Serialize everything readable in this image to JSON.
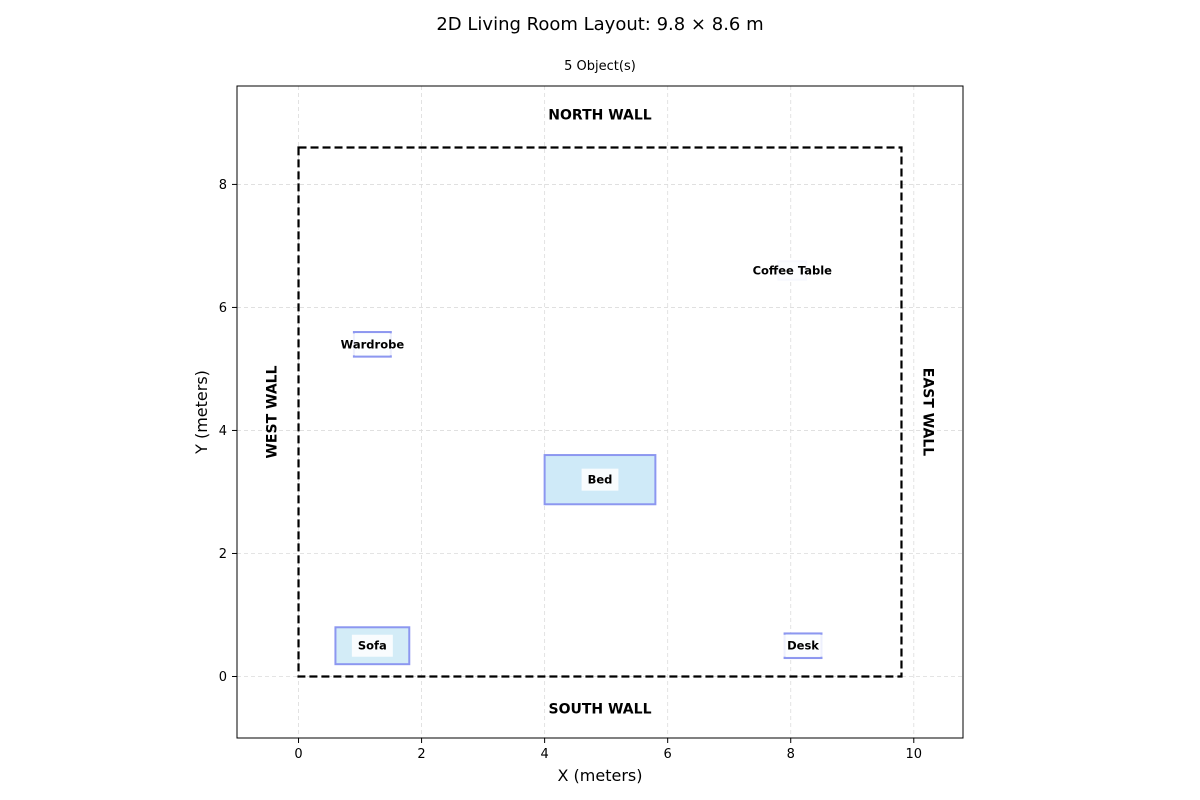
{
  "title": "2D Living Room Layout: 9.8 × 8.6 m",
  "subtitle": "5 Object(s)",
  "chart_data": {
    "type": "floor-plan",
    "xlabel": "X (meters)",
    "ylabel": "Y (meters)",
    "xlim": [
      -1.0,
      10.8
    ],
    "ylim": [
      -1.0,
      9.6
    ],
    "xticks": [
      0,
      2,
      4,
      6,
      8,
      10
    ],
    "yticks": [
      0,
      2,
      4,
      6,
      8
    ],
    "grid": true,
    "room": {
      "x": 0,
      "y": 0,
      "width": 9.8,
      "height": 8.6
    },
    "walls": {
      "north": "NORTH WALL",
      "south": "SOUTH WALL",
      "west": "WEST WALL",
      "east": "EAST WALL"
    },
    "objects": [
      {
        "name": "Sofa",
        "x": 0.6,
        "y": 0.2,
        "width": 1.2,
        "height": 0.6,
        "fill": "#d3ecf7",
        "edge": "#8c97f0"
      },
      {
        "name": "Desk",
        "x": 7.9,
        "y": 0.3,
        "width": 0.6,
        "height": 0.4,
        "fill": "#e8f4fb",
        "edge": "#8c97f0"
      },
      {
        "name": "Bed",
        "x": 4.0,
        "y": 2.8,
        "width": 1.8,
        "height": 0.8,
        "fill": "#cfeaf8",
        "edge": "#8c97f0"
      },
      {
        "name": "Wardrobe",
        "x": 0.9,
        "y": 5.2,
        "width": 0.6,
        "height": 0.4,
        "fill": "#eaf4fb",
        "edge": "#8c97f0"
      },
      {
        "name": "Coffee Table",
        "x": 7.8,
        "y": 6.45,
        "width": 0.45,
        "height": 0.3,
        "fill": "#eaf2fc",
        "edge": "#c7cdf5"
      }
    ]
  }
}
